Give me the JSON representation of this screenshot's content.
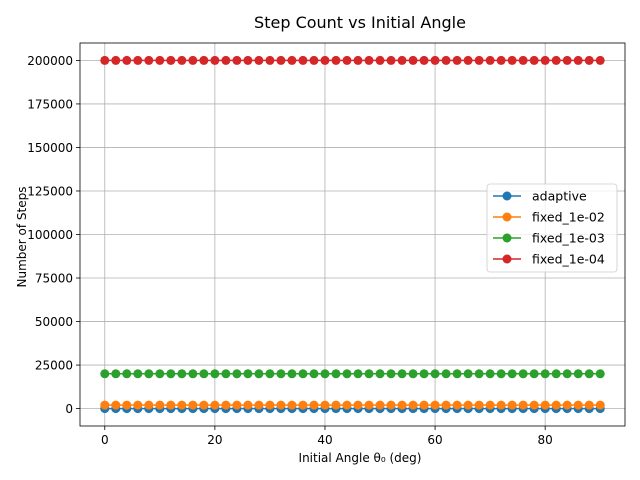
{
  "chart_data": {
    "type": "line",
    "title": "Step Count vs Initial Angle",
    "xlabel": "Initial Angle θ₀ (deg)",
    "ylabel": "Number of Steps",
    "xlim": [
      -4.5,
      94.5
    ],
    "ylim": [
      -10000,
      210000
    ],
    "x_ticks": [
      0,
      20,
      40,
      60,
      80
    ],
    "y_ticks": [
      0,
      25000,
      50000,
      75000,
      100000,
      125000,
      150000,
      175000,
      200000
    ],
    "grid": true,
    "legend_position": "center-right",
    "x": [
      0,
      2,
      4,
      6,
      8,
      10,
      12,
      14,
      16,
      18,
      20,
      22,
      24,
      26,
      28,
      30,
      32,
      34,
      36,
      38,
      40,
      42,
      44,
      46,
      48,
      50,
      52,
      54,
      56,
      58,
      60,
      62,
      64,
      66,
      68,
      70,
      72,
      74,
      76,
      78,
      80,
      82,
      84,
      86,
      88,
      90
    ],
    "series": [
      {
        "name": "adaptive",
        "color": "#1f77b4",
        "constant_value": 0
      },
      {
        "name": "fixed_1e-02",
        "color": "#ff7f0e",
        "constant_value": 2000
      },
      {
        "name": "fixed_1e-03",
        "color": "#2ca02c",
        "constant_value": 20000
      },
      {
        "name": "fixed_1e-04",
        "color": "#d62728",
        "constant_value": 200000
      }
    ]
  }
}
